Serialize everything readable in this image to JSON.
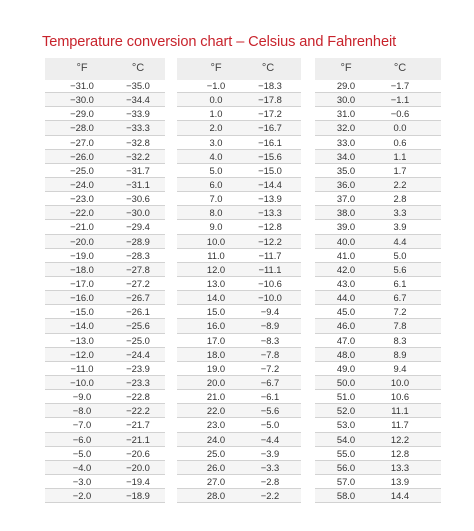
{
  "title": "Temperature conversion chart – Celsius and Fahrenheit",
  "columns": [
    "°F",
    "°C",
    "°F",
    "°C",
    "°F",
    "°C"
  ],
  "rows": [
    [
      "−31.0",
      "−35.0",
      "−1.0",
      "−18.3",
      "29.0",
      "−1.7"
    ],
    [
      "−30.0",
      "−34.4",
      "0.0",
      "−17.8",
      "30.0",
      "−1.1"
    ],
    [
      "−29.0",
      "−33.9",
      "1.0",
      "−17.2",
      "31.0",
      "−0.6"
    ],
    [
      "−28.0",
      "−33.3",
      "2.0",
      "−16.7",
      "32.0",
      "0.0"
    ],
    [
      "−27.0",
      "−32.8",
      "3.0",
      "−16.1",
      "33.0",
      "0.6"
    ],
    [
      "−26.0",
      "−32.2",
      "4.0",
      "−15.6",
      "34.0",
      "1.1"
    ],
    [
      "−25.0",
      "−31.7",
      "5.0",
      "−15.0",
      "35.0",
      "1.7"
    ],
    [
      "−24.0",
      "−31.1",
      "6.0",
      "−14.4",
      "36.0",
      "2.2"
    ],
    [
      "−23.0",
      "−30.6",
      "7.0",
      "−13.9",
      "37.0",
      "2.8"
    ],
    [
      "−22.0",
      "−30.0",
      "8.0",
      "−13.3",
      "38.0",
      "3.3"
    ],
    [
      "−21.0",
      "−29.4",
      "9.0",
      "−12.8",
      "39.0",
      "3.9"
    ],
    [
      "−20.0",
      "−28.9",
      "10.0",
      "−12.2",
      "40.0",
      "4.4"
    ],
    [
      "−19.0",
      "−28.3",
      "11.0",
      "−11.7",
      "41.0",
      "5.0"
    ],
    [
      "−18.0",
      "−27.8",
      "12.0",
      "−11.1",
      "42.0",
      "5.6"
    ],
    [
      "−17.0",
      "−27.2",
      "13.0",
      "−10.6",
      "43.0",
      "6.1"
    ],
    [
      "−16.0",
      "−26.7",
      "14.0",
      "−10.0",
      "44.0",
      "6.7"
    ],
    [
      "−15.0",
      "−26.1",
      "15.0",
      "−9.4",
      "45.0",
      "7.2"
    ],
    [
      "−14.0",
      "−25.6",
      "16.0",
      "−8.9",
      "46.0",
      "7.8"
    ],
    [
      "−13.0",
      "−25.0",
      "17.0",
      "−8.3",
      "47.0",
      "8.3"
    ],
    [
      "−12.0",
      "−24.4",
      "18.0",
      "−7.8",
      "48.0",
      "8.9"
    ],
    [
      "−11.0",
      "−23.9",
      "19.0",
      "−7.2",
      "49.0",
      "9.4"
    ],
    [
      "−10.0",
      "−23.3",
      "20.0",
      "−6.7",
      "50.0",
      "10.0"
    ],
    [
      "−9.0",
      "−22.8",
      "21.0",
      "−6.1",
      "51.0",
      "10.6"
    ],
    [
      "−8.0",
      "−22.2",
      "22.0",
      "−5.6",
      "52.0",
      "11.1"
    ],
    [
      "−7.0",
      "−21.7",
      "23.0",
      "−5.0",
      "53.0",
      "11.7"
    ],
    [
      "−6.0",
      "−21.1",
      "24.0",
      "−4.4",
      "54.0",
      "12.2"
    ],
    [
      "−5.0",
      "−20.6",
      "25.0",
      "−3.9",
      "55.0",
      "12.8"
    ],
    [
      "−4.0",
      "−20.0",
      "26.0",
      "−3.3",
      "56.0",
      "13.3"
    ],
    [
      "−3.0",
      "−19.4",
      "27.0",
      "−2.8",
      "57.0",
      "13.9"
    ],
    [
      "−2.0",
      "−18.9",
      "28.0",
      "−2.2",
      "58.0",
      "14.4"
    ]
  ],
  "colors": {
    "title": "#c8232c",
    "rule": "#d2d2d2",
    "text": "#333333"
  }
}
